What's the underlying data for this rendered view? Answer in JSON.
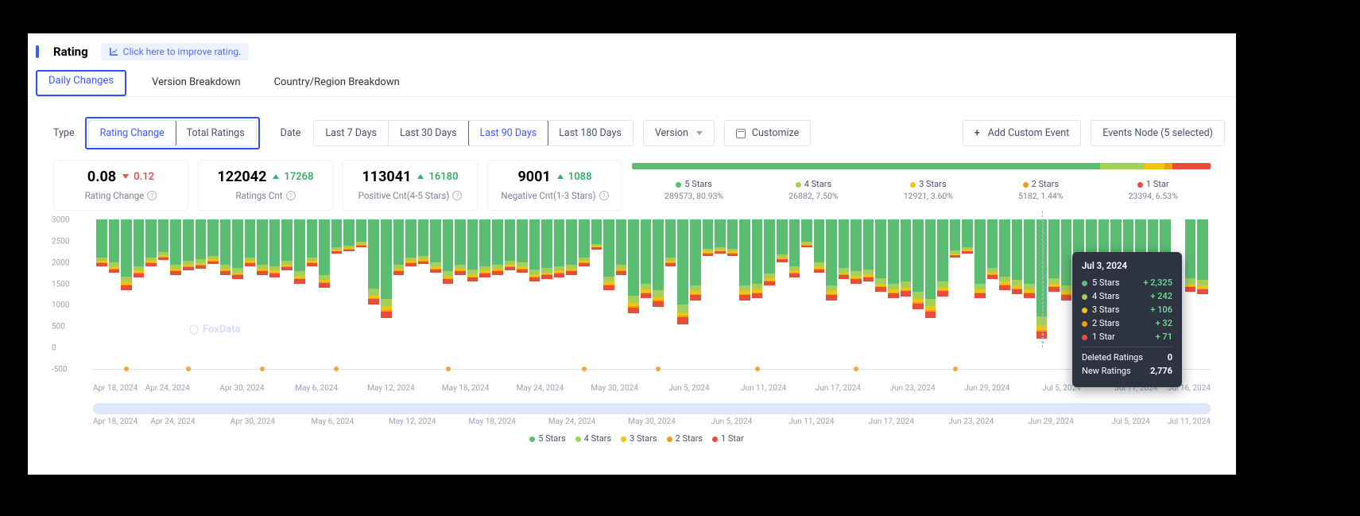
{
  "header": {
    "title": "Rating",
    "improve_link": "Click here to improve rating."
  },
  "tabs": [
    "Daily Changes",
    "Version Breakdown",
    "Country/Region Breakdown"
  ],
  "type_label": "Type",
  "type_options": [
    "Rating Change",
    "Total Ratings"
  ],
  "date_label": "Date",
  "date_options": [
    "Last 7 Days",
    "Last 30 Days",
    "Last 90 Days",
    "Last 180 Days"
  ],
  "date_selected": 2,
  "version_label": "Version",
  "customize_label": "Customize",
  "add_event_label": "Add Custom Event",
  "events_node_label": "Events Node (5 selected)",
  "cards": [
    {
      "value": "0.08",
      "delta": "0.12",
      "dir": "down",
      "label": "Rating Change"
    },
    {
      "value": "122042",
      "delta": "17268",
      "dir": "up",
      "label": "Ratings Cnt"
    },
    {
      "value": "113041",
      "delta": "16180",
      "dir": "up",
      "label": "Positive Cnt(4-5 Stars)"
    },
    {
      "value": "9001",
      "delta": "1088",
      "dir": "up",
      "label": "Negative Cnt(1-3 Stars)"
    }
  ],
  "dist": {
    "colors": {
      "s5": "#5bbd72",
      "s4": "#a4cf58",
      "s3": "#f1c40f",
      "s2": "#f39c12",
      "s1": "#e74c3c"
    },
    "items": [
      {
        "name": "5 Stars",
        "count": "289573, 80.93%",
        "pct": 80.93,
        "c": "#5bbd72"
      },
      {
        "name": "4 Stars",
        "count": "26882, 7.50%",
        "pct": 7.5,
        "c": "#a4cf58"
      },
      {
        "name": "3 Stars",
        "count": "12921, 3.60%",
        "pct": 3.6,
        "c": "#f1c40f"
      },
      {
        "name": "2 Stars",
        "count": "5182, 1.44%",
        "pct": 1.44,
        "c": "#f39c12"
      },
      {
        "name": "1 Star",
        "count": "23394, 6.53%",
        "pct": 6.53,
        "c": "#e74c3c"
      }
    ]
  },
  "chart": {
    "ymax": 3000,
    "yticks": [
      3000,
      2500,
      2000,
      1500,
      1000,
      500,
      0,
      -500
    ],
    "xlabels": [
      "Apr 18, 2024",
      "Apr 24, 2024",
      "Apr 30, 2024",
      "May 6, 2024",
      "May 12, 2024",
      "May 18, 2024",
      "May 24, 2024",
      "May 30, 2024",
      "Jun 5, 2024",
      "Jun 11, 2024",
      "Jun 17, 2024",
      "Jun 23, 2024",
      "Jun 29, 2024",
      "Jul 5, 2024",
      "Jul 11, 2024",
      "Jul 16, 2024"
    ],
    "scrub_labels": [
      "Apr 18, 2024",
      "Apr 24, 2024",
      "Apr 30, 2024",
      "May 6, 2024",
      "May 12, 2024",
      "May 18, 2024",
      "May 24, 2024",
      "May 30, 2024",
      "Jun 5, 2024",
      "Jun 11, 2024",
      "Jun 17, 2024",
      "Jun 23, 2024",
      "Jun 29, 2024",
      "Jul 5, 2024",
      "Jul 11, 2024"
    ],
    "watermark": "FoxData",
    "series": [
      {
        "t": 1100,
        "ev": 0
      },
      {
        "t": 1250,
        "ev": 0
      },
      {
        "t": 1650,
        "ev": 1
      },
      {
        "t": 1350,
        "ev": 0
      },
      {
        "t": 1100,
        "ev": 0
      },
      {
        "t": 950,
        "ev": 0
      },
      {
        "t": 1300,
        "ev": 0
      },
      {
        "t": 1200,
        "ev": 1
      },
      {
        "t": 1150,
        "ev": 0
      },
      {
        "t": 1050,
        "ev": 0
      },
      {
        "t": 1300,
        "ev": 0
      },
      {
        "t": 1400,
        "ev": 0
      },
      {
        "t": 1100,
        "ev": 0
      },
      {
        "t": 1300,
        "ev": 1
      },
      {
        "t": 1350,
        "ev": 0
      },
      {
        "t": 1200,
        "ev": 0
      },
      {
        "t": 1500,
        "ev": 0
      },
      {
        "t": 1100,
        "ev": 0
      },
      {
        "t": 1600,
        "ev": 0
      },
      {
        "t": 800,
        "ev": 1
      },
      {
        "t": 750,
        "ev": 0
      },
      {
        "t": 650,
        "ev": 0
      },
      {
        "t": 2000,
        "ev": 0
      },
      {
        "t": 2300,
        "ev": 0
      },
      {
        "t": 1300,
        "ev": 0
      },
      {
        "t": 1100,
        "ev": 0
      },
      {
        "t": 1050,
        "ev": 0
      },
      {
        "t": 1250,
        "ev": 0
      },
      {
        "t": 1500,
        "ev": 1
      },
      {
        "t": 1300,
        "ev": 0
      },
      {
        "t": 1450,
        "ev": 0
      },
      {
        "t": 1350,
        "ev": 0
      },
      {
        "t": 1300,
        "ev": 0
      },
      {
        "t": 1200,
        "ev": 0
      },
      {
        "t": 1250,
        "ev": 0
      },
      {
        "t": 1450,
        "ev": 0
      },
      {
        "t": 1400,
        "ev": 0
      },
      {
        "t": 1350,
        "ev": 0
      },
      {
        "t": 1300,
        "ev": 0
      },
      {
        "t": 1100,
        "ev": 1
      },
      {
        "t": 700,
        "ev": 0
      },
      {
        "t": 1650,
        "ev": 0
      },
      {
        "t": 1300,
        "ev": 0
      },
      {
        "t": 2200,
        "ev": 0
      },
      {
        "t": 1850,
        "ev": 0
      },
      {
        "t": 2050,
        "ev": 1
      },
      {
        "t": 1100,
        "ev": 0
      },
      {
        "t": 2450,
        "ev": 0
      },
      {
        "t": 1900,
        "ev": 0
      },
      {
        "t": 850,
        "ev": 0
      },
      {
        "t": 800,
        "ev": 0
      },
      {
        "t": 850,
        "ev": 0
      },
      {
        "t": 1900,
        "ev": 0
      },
      {
        "t": 1850,
        "ev": 1
      },
      {
        "t": 1550,
        "ev": 0
      },
      {
        "t": 1000,
        "ev": 0
      },
      {
        "t": 1350,
        "ev": 0
      },
      {
        "t": 650,
        "ev": 0
      },
      {
        "t": 1250,
        "ev": 0
      },
      {
        "t": 1900,
        "ev": 0
      },
      {
        "t": 1400,
        "ev": 0
      },
      {
        "t": 1500,
        "ev": 1
      },
      {
        "t": 1450,
        "ev": 0
      },
      {
        "t": 1700,
        "ev": 0
      },
      {
        "t": 1850,
        "ev": 0
      },
      {
        "t": 1800,
        "ev": 0
      },
      {
        "t": 2100,
        "ev": 0
      },
      {
        "t": 2300,
        "ev": 0
      },
      {
        "t": 1800,
        "ev": 0
      },
      {
        "t": 900,
        "ev": 1
      },
      {
        "t": 800,
        "ev": 0
      },
      {
        "t": 1850,
        "ev": 0
      },
      {
        "t": 1400,
        "ev": 0
      },
      {
        "t": 1650,
        "ev": 0
      },
      {
        "t": 1750,
        "ev": 0
      },
      {
        "t": 1850,
        "ev": 0
      },
      {
        "t": 2800,
        "ev": 0
      },
      {
        "t": 1700,
        "ev": 0
      },
      {
        "t": 1900,
        "ev": 0
      },
      {
        "t": 1750,
        "ev": 0
      },
      {
        "t": 1800,
        "ev": 0
      },
      {
        "t": 1950,
        "ev": 0
      },
      {
        "t": 1700,
        "ev": 0
      },
      {
        "t": 1650,
        "ev": 0
      },
      {
        "t": 1900,
        "ev": 0
      },
      {
        "t": 1950,
        "ev": 0
      },
      {
        "t": 1850,
        "ev": 1
      },
      {
        "t": 0,
        "ev": 0
      },
      {
        "t": 1700,
        "ev": 0
      },
      {
        "t": 1750,
        "ev": 0
      }
    ],
    "hover_index": 76
  },
  "tooltip": {
    "title": "Jul 3, 2024",
    "rows": [
      {
        "label": "5 Stars",
        "value": "+ 2,325",
        "c": "#5bbd72"
      },
      {
        "label": "4 Stars",
        "value": "+ 242",
        "c": "#a4cf58"
      },
      {
        "label": "3 Stars",
        "value": "+ 106",
        "c": "#f1c40f"
      },
      {
        "label": "2 Stars",
        "value": "+ 32",
        "c": "#f39c12"
      },
      {
        "label": "1 Star",
        "value": "+ 71",
        "c": "#e74c3c"
      }
    ],
    "deleted_label": "Deleted Ratings",
    "deleted_value": "0",
    "new_label": "New Ratings",
    "new_value": "2,776"
  },
  "bottom_legend": [
    "5 Stars",
    "4 Stars",
    "3 Stars",
    "2 Stars",
    "1 Star"
  ],
  "legend_colors": [
    "#5bbd72",
    "#a4cf58",
    "#f1c40f",
    "#f39c12",
    "#e74c3c"
  ]
}
